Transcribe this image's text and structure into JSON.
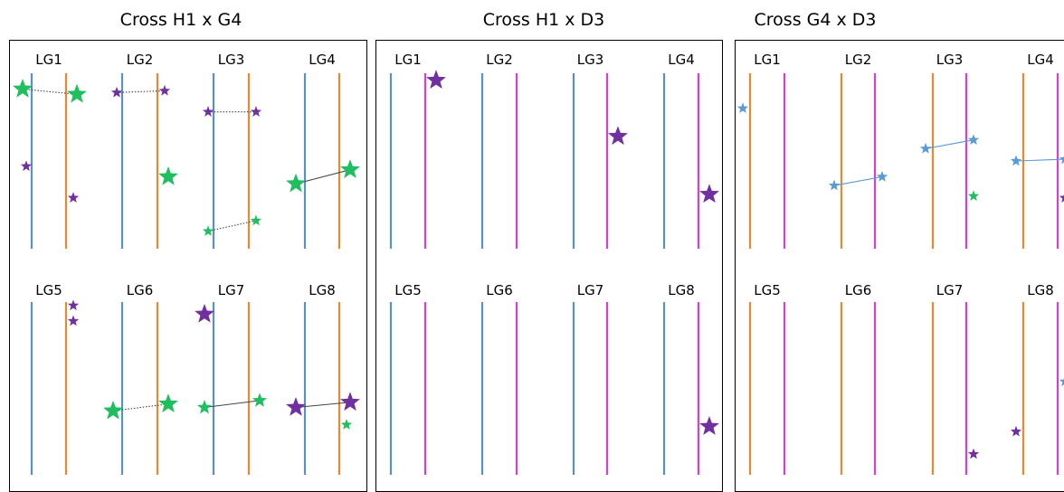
{
  "colors": {
    "blue": "#5b8fc8",
    "orange": "#e8892f",
    "magenta": "#d63fd6",
    "green": "#1fbf5f",
    "purple": "#7030a0",
    "lightblue": "#5b9bd5",
    "line": "#444444"
  },
  "panels": [
    {
      "title": "Cross H1 x G4",
      "chromColors": [
        "blue",
        "orange"
      ],
      "groups": [
        {
          "label": "LG1",
          "markers": [
            {
              "chrom": 0,
              "pos": 0.09,
              "color": "green",
              "size": "large"
            },
            {
              "chrom": 1,
              "pos": 0.12,
              "color": "green",
              "size": "large"
            },
            {
              "chrom": 0,
              "pos": 0.53,
              "color": "purple",
              "size": "small"
            },
            {
              "chrom": 1,
              "pos": 0.71,
              "color": "purple",
              "size": "small"
            }
          ],
          "links": [
            {
              "from": 0,
              "to": 1,
              "style": "dotted"
            }
          ]
        },
        {
          "label": "LG2",
          "markers": [
            {
              "chrom": 0,
              "pos": 0.11,
              "color": "purple",
              "size": "small"
            },
            {
              "chrom": 1,
              "pos": 0.1,
              "color": "purple",
              "size": "small"
            },
            {
              "chrom": 1,
              "pos": 0.59,
              "color": "green",
              "size": "large"
            }
          ],
          "links": [
            {
              "from": 0,
              "to": 1,
              "style": "dotted"
            }
          ]
        },
        {
          "label": "LG3",
          "markers": [
            {
              "chrom": 0,
              "pos": 0.22,
              "color": "purple",
              "size": "small"
            },
            {
              "chrom": 1,
              "pos": 0.22,
              "color": "purple",
              "size": "small"
            },
            {
              "chrom": 0,
              "pos": 0.9,
              "color": "green",
              "size": "small"
            },
            {
              "chrom": 1,
              "pos": 0.84,
              "color": "green",
              "size": "small"
            }
          ],
          "links": [
            {
              "from": 0,
              "to": 1,
              "style": "dotted"
            },
            {
              "from": 2,
              "to": 3,
              "style": "dotted"
            }
          ]
        },
        {
          "label": "LG4",
          "markers": [
            {
              "chrom": 0,
              "pos": 0.63,
              "color": "green",
              "size": "large"
            },
            {
              "chrom": 1,
              "pos": 0.55,
              "color": "green",
              "size": "large"
            }
          ],
          "links": [
            {
              "from": 0,
              "to": 1,
              "style": "solid"
            }
          ]
        },
        {
          "label": "LG5",
          "markers": [
            {
              "chrom": 1,
              "pos": 0.02,
              "color": "purple",
              "size": "small"
            },
            {
              "chrom": 1,
              "pos": 0.11,
              "color": "purple",
              "size": "small"
            }
          ],
          "links": []
        },
        {
          "label": "LG6",
          "markers": [
            {
              "chrom": 0,
              "pos": 0.63,
              "color": "green",
              "size": "large"
            },
            {
              "chrom": 1,
              "pos": 0.59,
              "color": "green",
              "size": "large"
            }
          ],
          "links": [
            {
              "from": 0,
              "to": 1,
              "style": "dotted"
            }
          ]
        },
        {
          "label": "LG7",
          "markers": [
            {
              "chrom": 0,
              "pos": 0.07,
              "color": "purple",
              "size": "large"
            },
            {
              "chrom": 0,
              "pos": 0.61,
              "color": "green",
              "size": "medium"
            },
            {
              "chrom": 1,
              "pos": 0.57,
              "color": "green",
              "size": "medium"
            }
          ],
          "links": [
            {
              "from": 1,
              "to": 2,
              "style": "solid"
            }
          ]
        },
        {
          "label": "LG8",
          "markers": [
            {
              "chrom": 0,
              "pos": 0.61,
              "color": "purple",
              "size": "large"
            },
            {
              "chrom": 1,
              "pos": 0.58,
              "color": "purple",
              "size": "large"
            },
            {
              "chrom": 1,
              "pos": 0.71,
              "color": "green",
              "size": "small"
            }
          ],
          "links": [
            {
              "from": 0,
              "to": 1,
              "style": "solid"
            }
          ]
        }
      ]
    },
    {
      "title": "Cross H1 x D3",
      "chromColors": [
        "blue",
        "magenta"
      ],
      "groups": [
        {
          "label": "LG1",
          "markers": [
            {
              "chrom": 1,
              "pos": 0.04,
              "color": "purple",
              "size": "large"
            }
          ],
          "links": []
        },
        {
          "label": "LG2",
          "markers": [],
          "links": []
        },
        {
          "label": "LG3",
          "markers": [
            {
              "chrom": 1,
              "pos": 0.36,
              "color": "purple",
              "size": "large"
            }
          ],
          "links": []
        },
        {
          "label": "LG4",
          "markers": [
            {
              "chrom": 1,
              "pos": 0.69,
              "color": "purple",
              "size": "large"
            }
          ],
          "links": []
        },
        {
          "label": "LG5",
          "markers": [],
          "links": []
        },
        {
          "label": "LG6",
          "markers": [],
          "links": []
        },
        {
          "label": "LG7",
          "markers": [],
          "links": []
        },
        {
          "label": "LG8",
          "markers": [
            {
              "chrom": 1,
              "pos": 0.72,
              "color": "purple",
              "size": "large"
            }
          ],
          "links": []
        }
      ]
    },
    {
      "title": "Cross G4 x D3",
      "chromColors": [
        "orange",
        "magenta"
      ],
      "groups": [
        {
          "label": "LG1",
          "markers": [
            {
              "chrom": 0,
              "pos": 0.2,
              "color": "lightblue",
              "size": "small",
              "dx": -8
            }
          ],
          "links": []
        },
        {
          "label": "LG2",
          "markers": [
            {
              "chrom": 0,
              "pos": 0.64,
              "color": "lightblue",
              "size": "small",
              "dx": -8
            },
            {
              "chrom": 1,
              "pos": 0.59,
              "color": "lightblue",
              "size": "small",
              "dx": 8
            }
          ],
          "links": [
            {
              "from": 0,
              "to": 1,
              "style": "solid"
            }
          ]
        },
        {
          "label": "LG3",
          "markers": [
            {
              "chrom": 0,
              "pos": 0.43,
              "color": "lightblue",
              "size": "small",
              "dx": -8
            },
            {
              "chrom": 1,
              "pos": 0.38,
              "color": "lightblue",
              "size": "small",
              "dx": 8
            },
            {
              "chrom": 1,
              "pos": 0.7,
              "color": "green",
              "size": "small",
              "dx": 8
            }
          ],
          "links": [
            {
              "from": 0,
              "to": 1,
              "style": "solid"
            }
          ]
        },
        {
          "label": "LG4",
          "markers": [
            {
              "chrom": 0,
              "pos": 0.5,
              "color": "lightblue",
              "size": "small",
              "dx": -8
            },
            {
              "chrom": 1,
              "pos": 0.49,
              "color": "lightblue",
              "size": "small",
              "dx": 8
            },
            {
              "chrom": 1,
              "pos": 0.71,
              "color": "purple",
              "size": "small",
              "dx": 8
            }
          ],
          "links": [
            {
              "from": 0,
              "to": 1,
              "style": "solid"
            }
          ]
        },
        {
          "label": "LG5",
          "markers": [],
          "links": []
        },
        {
          "label": "LG6",
          "markers": [],
          "links": []
        },
        {
          "label": "LG7",
          "markers": [
            {
              "chrom": 1,
              "pos": 0.88,
              "color": "purple",
              "size": "small",
              "dx": 8
            }
          ],
          "links": []
        },
        {
          "label": "LG8",
          "markers": [
            {
              "chrom": 0,
              "pos": 0.75,
              "color": "purple",
              "size": "small",
              "dx": -8
            },
            {
              "chrom": 1,
              "pos": 0.46,
              "color": "lightblue",
              "size": "small",
              "dx": 8
            }
          ],
          "links": []
        }
      ]
    }
  ]
}
